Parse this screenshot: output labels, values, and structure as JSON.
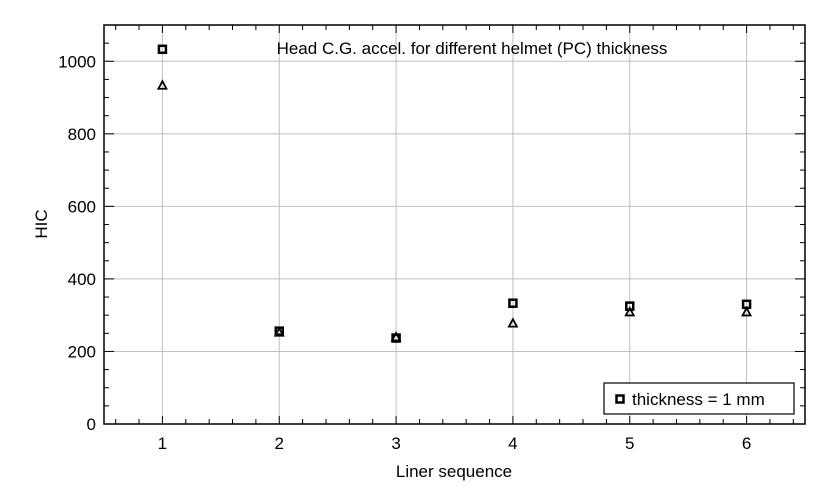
{
  "chart_data": {
    "type": "scatter",
    "title": "Head C.G. accel. for different helmet (PC) thickness",
    "xlabel": "Liner sequence",
    "ylabel": "HIC",
    "xlim": [
      0.5,
      6.5
    ],
    "ylim": [
      0,
      1100
    ],
    "xticks": [
      1,
      2,
      3,
      4,
      5,
      6
    ],
    "yticks": [
      0,
      200,
      400,
      600,
      800,
      1000
    ],
    "grid": true,
    "legend_position": "bottom-right",
    "series": [
      {
        "name": "thickness = 1 mm",
        "marker": "square",
        "x": [
          1,
          2,
          3,
          4,
          5,
          6
        ],
        "y": [
          1033,
          256,
          237,
          333,
          325,
          330
        ]
      },
      {
        "marker": "triangle",
        "x": [
          1,
          2,
          3,
          4,
          5,
          6
        ],
        "y": [
          934,
          253,
          240,
          278,
          309,
          309
        ]
      }
    ]
  }
}
